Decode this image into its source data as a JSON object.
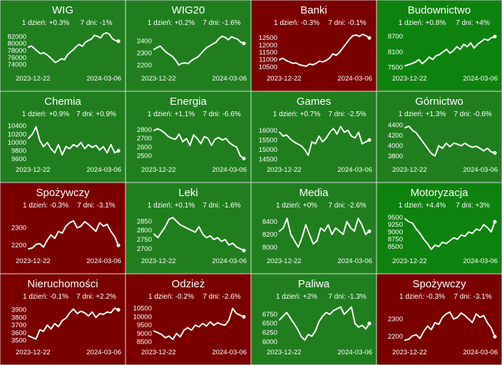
{
  "colors": {
    "up": "#207E1F",
    "down": "#7A0000",
    "positive_strong": "#0E820E",
    "grid_line": "#dcdcdc",
    "text": "#ffffff"
  },
  "labels": {
    "one_day": "1 dzień:",
    "seven_days": "7 dni:"
  },
  "chart_data": [
    {
      "type": "line",
      "title": "WIG",
      "one_day": "+0.3%",
      "seven_days": "-1%",
      "bg": "up",
      "x_start": "2023-12-22",
      "x_end": "2024-03-06",
      "yticks": [
        "82000",
        "80000",
        "78000",
        "76000",
        "74000"
      ],
      "ylim": [
        72500,
        83500
      ],
      "values": [
        79000,
        79300,
        78600,
        77800,
        77100,
        77400,
        76900,
        76200,
        75400,
        74600,
        75100,
        75700,
        75400,
        76800,
        77600,
        78300,
        79200,
        79800,
        79200,
        80400,
        80900,
        81300,
        82400,
        82100,
        81600,
        82700,
        83100,
        82700,
        81400,
        80900,
        80700
      ]
    },
    {
      "type": "line",
      "title": "WIG20",
      "one_day": "+0.2%",
      "seven_days": "-1.6%",
      "bg": "up",
      "x_start": "2023-12-22",
      "x_end": "2024-03-06",
      "yticks": [
        "2400",
        "2300",
        "2200"
      ],
      "ylim": [
        2160,
        2480
      ],
      "values": [
        2330,
        2345,
        2358,
        2330,
        2305,
        2288,
        2270,
        2240,
        2200,
        2215,
        2218,
        2212,
        2235,
        2252,
        2265,
        2290,
        2320,
        2345,
        2360,
        2375,
        2390,
        2420,
        2440,
        2430,
        2410,
        2435,
        2425,
        2415,
        2390,
        2380
      ]
    },
    {
      "type": "line",
      "title": "Banki",
      "one_day": "-0.3%",
      "seven_days": "-0.1%",
      "bg": "down",
      "x_start": "2023-12-22",
      "x_end": "2024-03-06",
      "yticks": [
        "12500",
        "12000",
        "11500",
        "11000",
        "10500"
      ],
      "ylim": [
        10300,
        12950
      ],
      "values": [
        11000,
        11100,
        10950,
        10850,
        10750,
        10780,
        10650,
        10600,
        10550,
        10700,
        10650,
        10750,
        10900,
        10850,
        10950,
        11100,
        11400,
        11300,
        11500,
        11800,
        12100,
        12400,
        12650,
        12700,
        12600,
        12750,
        12650,
        12500
      ]
    },
    {
      "type": "line",
      "title": "Budownictwo",
      "one_day": "+0.8%",
      "seven_days": "+4%",
      "bg": "positive_strong",
      "x_start": "2023-12-22",
      "x_end": "2024-03-06",
      "yticks": [
        "8700",
        "8100",
        "7500"
      ],
      "ylim": [
        7400,
        8900
      ],
      "values": [
        7560,
        7600,
        7650,
        7700,
        7800,
        7640,
        7760,
        7900,
        7800,
        7950,
        8000,
        8100,
        8200,
        8050,
        8150,
        8300,
        8200,
        8400,
        8300,
        8450,
        8250,
        8400,
        8500,
        8600,
        8550,
        8650,
        8700
      ]
    },
    {
      "type": "line",
      "title": "Chemia",
      "one_day": "+0.9%",
      "seven_days": "+0.9%",
      "bg": "up",
      "x_start": "2023-12-22",
      "x_end": "2024-03-06",
      "yticks": [
        "10400",
        "10200",
        "10000",
        "9800",
        "9600"
      ],
      "ylim": [
        9550,
        10480
      ],
      "values": [
        10100,
        10200,
        10380,
        10050,
        9900,
        10000,
        9850,
        9750,
        9950,
        9700,
        9900,
        9850,
        9950,
        9900,
        10000,
        9850,
        9950,
        9880,
        9930,
        9820,
        9900,
        9750,
        9950,
        9750,
        9800
      ]
    },
    {
      "type": "line",
      "title": "Energia",
      "one_day": "+1.1%",
      "seven_days": "-6.6%",
      "bg": "up",
      "x_start": "2023-12-22",
      "x_end": "2024-03-06",
      "yticks": [
        "2800",
        "2700",
        "2600",
        "2500"
      ],
      "ylim": [
        2440,
        2880
      ],
      "values": [
        2790,
        2810,
        2790,
        2760,
        2720,
        2700,
        2690,
        2750,
        2660,
        2700,
        2620,
        2740,
        2700,
        2640,
        2720,
        2700,
        2620,
        2690,
        2710,
        2680,
        2700,
        2650,
        2620,
        2600,
        2500,
        2470
      ]
    },
    {
      "type": "line",
      "title": "Games",
      "one_day": "+0.7%",
      "seven_days": "-2.5%",
      "bg": "up",
      "x_start": "2023-12-22",
      "x_end": "2024-03-06",
      "yticks": [
        "16000",
        "15500",
        "15000",
        "14500"
      ],
      "ylim": [
        14400,
        16400
      ],
      "values": [
        15900,
        15700,
        15750,
        15550,
        15400,
        15300,
        15200,
        15000,
        14700,
        15400,
        15300,
        15700,
        15400,
        15600,
        15900,
        16100,
        15800,
        16200,
        15900,
        16000,
        15700,
        15600,
        15900,
        15300,
        15400,
        15500
      ]
    },
    {
      "type": "line",
      "title": "Górnictwo",
      "one_day": "+1.3%",
      "seven_days": "-0.6%",
      "bg": "up",
      "x_start": "2023-12-22",
      "x_end": "2024-03-06",
      "yticks": [
        "4400",
        "4200",
        "4000",
        "3800"
      ],
      "ylim": [
        3700,
        4450
      ],
      "values": [
        4350,
        4380,
        4300,
        4250,
        4150,
        4050,
        3950,
        3850,
        3800,
        4000,
        3950,
        4050,
        3980,
        4050,
        4030,
        4000,
        4050,
        4000,
        3970,
        3990,
        3950,
        3900,
        3950,
        3880,
        3860
      ]
    },
    {
      "type": "line",
      "title": "Spożywczy",
      "one_day": "-0.3%",
      "seven_days": "-3.1%",
      "bg": "down",
      "x_start": "2023-12-22",
      "x_end": "2024-03-06",
      "yticks": [
        "2300",
        "2200"
      ],
      "ylim": [
        2160,
        2380
      ],
      "values": [
        2180,
        2185,
        2205,
        2210,
        2190,
        2230,
        2260,
        2240,
        2280,
        2270,
        2310,
        2330,
        2340,
        2300,
        2310,
        2335,
        2320,
        2300,
        2280,
        2330,
        2310,
        2320,
        2280,
        2250,
        2200
      ]
    },
    {
      "type": "line",
      "title": "Leki",
      "one_day": "+0.1%",
      "seven_days": "-1.6%",
      "bg": "up",
      "x_start": "2023-12-22",
      "x_end": "2024-03-06",
      "yticks": [
        "2850",
        "2800",
        "2750",
        "2700"
      ],
      "ylim": [
        2680,
        2890
      ],
      "values": [
        2780,
        2760,
        2790,
        2820,
        2860,
        2870,
        2850,
        2830,
        2820,
        2810,
        2800,
        2790,
        2820,
        2780,
        2760,
        2770,
        2750,
        2760,
        2740,
        2750,
        2720,
        2730,
        2710,
        2700,
        2690
      ]
    },
    {
      "type": "line",
      "title": "Media",
      "one_day": "+0%",
      "seven_days": "-2.6%",
      "bg": "up",
      "x_start": "2023-12-22",
      "x_end": "2024-03-06",
      "yticks": [
        "8400",
        "8200",
        "8000"
      ],
      "ylim": [
        7920,
        8520
      ],
      "values": [
        8250,
        8300,
        8450,
        8200,
        8100,
        8000,
        8150,
        8350,
        8200,
        8050,
        8100,
        8300,
        8250,
        8350,
        8200,
        8300,
        8250,
        8200,
        8400,
        8300,
        8250,
        8450,
        8350,
        8200,
        8250
      ]
    },
    {
      "type": "line",
      "title": "Motoryzacja",
      "one_day": "+4.4%",
      "seven_days": "+3%",
      "bg": "positive_strong",
      "x_start": "2023-12-22",
      "x_end": "2024-03-06",
      "yticks": [
        "9500",
        "9250",
        "9000",
        "8750",
        "8500"
      ],
      "ylim": [
        8300,
        9620
      ],
      "values": [
        9450,
        9350,
        9300,
        9100,
        8950,
        8750,
        8600,
        8400,
        8550,
        8500,
        8650,
        8600,
        8700,
        8800,
        8750,
        8900,
        8850,
        9000,
        8950,
        9100,
        9050,
        9250,
        9150,
        9000,
        9350
      ]
    },
    {
      "type": "line",
      "title": "Nieruchomości",
      "one_day": "-0.1%",
      "seven_days": "+2.2%",
      "bg": "down",
      "x_start": "2023-12-22",
      "x_end": "2024-03-06",
      "yticks": [
        "3900",
        "3800",
        "3700",
        "3600",
        "3500"
      ],
      "ylim": [
        3460,
        3960
      ],
      "values": [
        3560,
        3540,
        3520,
        3640,
        3620,
        3700,
        3650,
        3720,
        3680,
        3760,
        3790,
        3860,
        3910,
        3850,
        3880,
        3860,
        3820,
        3870,
        3800,
        3850,
        3840,
        3870,
        3860,
        3920,
        3900
      ]
    },
    {
      "type": "line",
      "title": "Odzież",
      "one_day": "-0.2%",
      "seven_days": "-2.6%",
      "bg": "down",
      "x_start": "2023-12-22",
      "x_end": "2024-03-06",
      "yticks": [
        "10500",
        "10000",
        "9500",
        "9000",
        "8500"
      ],
      "ylim": [
        8400,
        10700
      ],
      "values": [
        9150,
        9050,
        8950,
        8750,
        8850,
        8650,
        9000,
        8800,
        9200,
        9350,
        9200,
        9500,
        9400,
        9600,
        9450,
        9700,
        9500,
        9650,
        9550,
        9500,
        9800,
        10500,
        10200,
        10100,
        10000
      ]
    },
    {
      "type": "line",
      "title": "Paliwa",
      "one_day": "+2%",
      "seven_days": "-1.3%",
      "bg": "up",
      "x_start": "2023-12-22",
      "x_end": "2024-03-06",
      "yticks": [
        "6750",
        "6500",
        "6250",
        "6000"
      ],
      "ylim": [
        5950,
        7000
      ],
      "values": [
        6600,
        6700,
        6800,
        6650,
        6500,
        6350,
        6150,
        6050,
        6200,
        6150,
        6300,
        6550,
        6700,
        6800,
        6750,
        6850,
        6900,
        6950,
        6750,
        6850,
        6950,
        6500,
        6400,
        6450,
        6350,
        6500
      ]
    },
    {
      "type": "line",
      "title": "Spożywczy",
      "one_day": "-0.3%",
      "seven_days": "-3.1%",
      "bg": "down",
      "x_start": "2023-12-22",
      "x_end": "2024-03-06",
      "yticks": [
        "2300",
        "2200"
      ],
      "ylim": [
        2160,
        2380
      ],
      "values": [
        2180,
        2185,
        2205,
        2210,
        2190,
        2230,
        2260,
        2240,
        2280,
        2270,
        2310,
        2330,
        2340,
        2300,
        2310,
        2335,
        2320,
        2300,
        2280,
        2330,
        2310,
        2320,
        2280,
        2250,
        2200
      ]
    }
  ]
}
